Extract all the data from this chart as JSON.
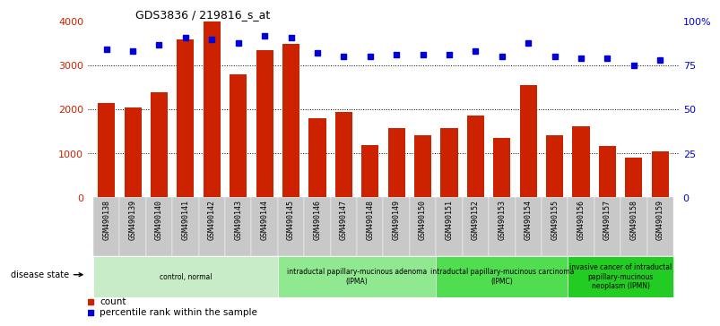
{
  "title": "GDS3836 / 219816_s_at",
  "samples": [
    "GSM490138",
    "GSM490139",
    "GSM490140",
    "GSM490141",
    "GSM490142",
    "GSM490143",
    "GSM490144",
    "GSM490145",
    "GSM490146",
    "GSM490147",
    "GSM490148",
    "GSM490149",
    "GSM490150",
    "GSM490151",
    "GSM490152",
    "GSM490153",
    "GSM490154",
    "GSM490155",
    "GSM490156",
    "GSM490157",
    "GSM490158",
    "GSM490159"
  ],
  "counts": [
    2150,
    2050,
    2400,
    3600,
    4000,
    2800,
    3350,
    3500,
    1800,
    1950,
    1200,
    1580,
    1420,
    1580,
    1870,
    1350,
    2560,
    1420,
    1620,
    1180,
    900,
    1040
  ],
  "percentiles": [
    84,
    83,
    87,
    91,
    90,
    88,
    92,
    91,
    82,
    80,
    80,
    81,
    81,
    81,
    83,
    80,
    88,
    80,
    79,
    79,
    75,
    78
  ],
  "bar_color": "#cc2200",
  "dot_color": "#0000dd",
  "left_axis_color": "#cc2200",
  "right_axis_color": "#0000dd",
  "ylim_left": [
    0,
    4000
  ],
  "ylim_right": [
    0,
    100
  ],
  "yticks_left": [
    0,
    1000,
    2000,
    3000,
    4000
  ],
  "yticks_right": [
    0,
    25,
    50,
    75,
    100
  ],
  "ytick_labels_right": [
    "0",
    "25",
    "50",
    "75",
    "100%"
  ],
  "group_labels": [
    "control, normal",
    "intraductal papillary-mucinous adenoma\n(IPMA)",
    "intraductal papillary-mucinous carcinoma\n(IPMC)",
    "invasive cancer of intraductal\npapillary-mucinous\nneoplasm (IPMN)"
  ],
  "group_starts": [
    0,
    7,
    13,
    18
  ],
  "group_ends": [
    7,
    13,
    18,
    22
  ],
  "group_colors": [
    "#c8ebc8",
    "#90e890",
    "#50dd50",
    "#22cc22"
  ],
  "disease_state_label": "disease state",
  "legend_count_label": "count",
  "legend_pct_label": "percentile rank within the sample",
  "xtick_bg": "#c8c8c8"
}
